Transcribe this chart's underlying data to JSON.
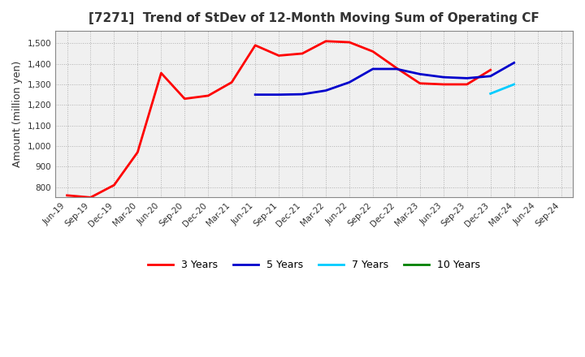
{
  "title": "[7271]  Trend of StDev of 12-Month Moving Sum of Operating CF",
  "ylabel": "Amount (million yen)",
  "background_color": "#ffffff",
  "plot_bg_color": "#f0f0f0",
  "grid_color": "#aaaaaa",
  "ylim": [
    750,
    1560
  ],
  "yticks": [
    800,
    900,
    1000,
    1100,
    1200,
    1300,
    1400,
    1500
  ],
  "x_labels": [
    "Jun-19",
    "Sep-19",
    "Dec-19",
    "Mar-20",
    "Jun-20",
    "Sep-20",
    "Dec-20",
    "Mar-21",
    "Jun-21",
    "Sep-21",
    "Dec-21",
    "Mar-22",
    "Jun-22",
    "Sep-22",
    "Dec-22",
    "Mar-23",
    "Jun-23",
    "Sep-23",
    "Dec-23",
    "Mar-24",
    "Jun-24",
    "Sep-24"
  ],
  "series_3y": {
    "color": "#ff0000",
    "label": "3 Years",
    "values": [
      760,
      750,
      810,
      970,
      1355,
      1230,
      1245,
      1310,
      1490,
      1440,
      1450,
      1510,
      1505,
      1460,
      1380,
      1305,
      1300,
      1300,
      1370,
      null,
      null,
      null
    ]
  },
  "series_5y": {
    "color": "#0000cc",
    "label": "5 Years",
    "values": [
      null,
      null,
      null,
      null,
      null,
      null,
      null,
      null,
      1250,
      1250,
      1252,
      1270,
      1310,
      1375,
      1375,
      1350,
      1335,
      1330,
      1340,
      1405,
      null,
      null
    ]
  },
  "series_7y": {
    "color": "#00ccff",
    "label": "7 Years",
    "values": [
      null,
      null,
      null,
      null,
      null,
      null,
      null,
      null,
      null,
      null,
      null,
      null,
      null,
      null,
      null,
      null,
      null,
      null,
      1255,
      1300,
      null,
      null
    ]
  },
  "series_10y": {
    "color": "#008000",
    "label": "10 Years",
    "values": [
      null,
      null,
      null,
      null,
      null,
      null,
      null,
      null,
      null,
      null,
      null,
      null,
      null,
      null,
      null,
      null,
      null,
      null,
      null,
      null,
      null,
      null
    ]
  }
}
